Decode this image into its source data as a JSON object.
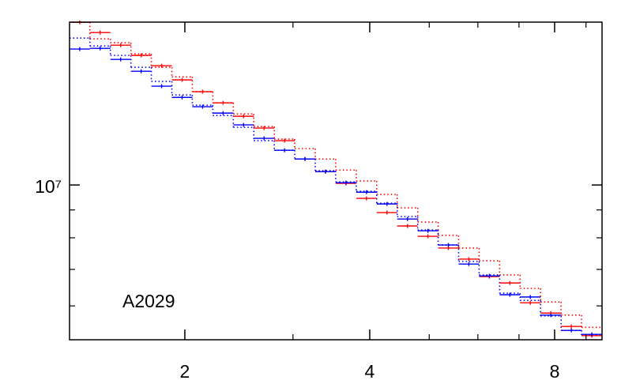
{
  "chart_data": {
    "type": "step-histogram",
    "annotation": "A2029",
    "xscale": "log",
    "yscale": "log",
    "xlim": [
      1.298,
      9.557
    ],
    "ylim": [
      5200000.0,
      19900000.0
    ],
    "xticks": [
      2,
      4,
      8
    ],
    "xminorticks": [
      3,
      5,
      6,
      7,
      9
    ],
    "yticks": [
      {
        "value": 10000000.0,
        "label": "10⁷"
      }
    ],
    "yminorticks": [
      6000000.0,
      7000000.0,
      8000000.0,
      9000000.0
    ],
    "bins": [
      1.298,
      1.401,
      1.513,
      1.634,
      1.764,
      1.905,
      2.057,
      2.221,
      2.399,
      2.59,
      2.797,
      3.02,
      3.261,
      3.521,
      3.803,
      4.106,
      4.434,
      4.788,
      5.17,
      5.582,
      6.028,
      6.509,
      7.029,
      7.59,
      8.196,
      8.85,
      9.557
    ],
    "series": [
      {
        "color": "#ff0000",
        "linestyle": "dotted",
        "values": [
          19890000.0,
          18540000.0,
          18240000.0,
          17400000.0,
          16440000.0,
          15790000.0,
          14830000.0,
          14150000.0,
          13500000.0,
          12800000.0,
          12140000.0,
          11660000.0,
          11160000.0,
          10650000.0,
          10170000.0,
          9610000.0,
          9080000.0,
          8550000.0,
          8080000.0,
          7660000.0,
          7260000.0,
          6840000.0,
          6460000.0,
          6100000.0,
          5770000.0,
          5480000.0
        ]
      },
      {
        "color": "#0000ff",
        "linestyle": "dotted",
        "values": [
          18600000.0,
          17990000.0,
          17290000.0,
          16440000.0,
          15490000.0,
          14630000.0,
          14010000.0,
          13410000.0,
          12760000.0,
          12060000.0,
          11580000.0,
          11160000.0,
          10620000.0,
          10130000.0,
          9740000.0,
          9260000.0,
          8750000.0,
          8270000.0,
          7760000.0,
          7240000.0,
          6840000.0,
          6330000.0,
          6140000.0,
          5750000.0,
          5410000.0,
          5300000.0
        ]
      },
      {
        "color": "#ff0000",
        "linestyle": "solid",
        "values": [
          19890000.0,
          19040000.0,
          18050000.0,
          17290000.0,
          16550000.0,
          15590000.0,
          14830000.0,
          14150000.0,
          13370000.0,
          12720000.0,
          12060000.0,
          11160000.0,
          10580000.0,
          10070000.0,
          9450000.0,
          8900000.0,
          8410000.0,
          8050000.0,
          7660000.0,
          7310000.0,
          6790000.0,
          6610000.0,
          6080000.0,
          5820000.0,
          5500000.0,
          5290000.0
        ]
      },
      {
        "color": "#0000ff",
        "linestyle": "solid",
        "values": [
          17760000.0,
          17810000.0,
          17000000.0,
          16170000.0,
          15180000.0,
          14480000.0,
          13920000.0,
          13550000.0,
          12890000.0,
          12180000.0,
          11580000.0,
          11160000.0,
          10580000.0,
          10100000.0,
          9700000.0,
          9230000.0,
          8660000.0,
          8240000.0,
          7760000.0,
          7160000.0,
          6810000.0,
          6290000.0,
          6230000.0,
          5770000.0,
          5410000.0,
          5320000.0
        ]
      }
    ]
  }
}
